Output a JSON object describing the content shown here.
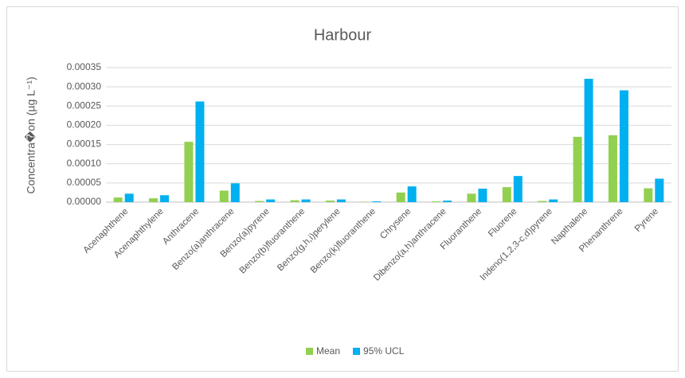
{
  "chart_data": {
    "type": "bar",
    "title": "Harbour",
    "y_label": "Concentra�on (µg L⁻¹)",
    "categories": [
      "Acenaphthene",
      "Acenaphthylene",
      "Anthracene",
      "Benzo(a)anthracene",
      "Benzo(a)pyrene",
      "Benzo(b)fluoranthene",
      "Benzo(g,h,i)perylene",
      "Benzo(k)fluoranthene",
      "Chrysene",
      "Dibenzo(a,h)anthracene",
      "Fluoranthene",
      "Fluorene",
      "Indeno(1,2,3-c,d)pyrene",
      "Napthalene",
      "Phenanthrene",
      "Pyrene"
    ],
    "series": [
      {
        "name": "Mean",
        "color": "#92d050",
        "values": [
          1.2e-05,
          1e-05,
          0.000157,
          3e-05,
          3e-06,
          5e-06,
          4e-06,
          1e-06,
          2.5e-05,
          2e-06,
          2.2e-05,
          3.9e-05,
          3e-06,
          0.00017,
          0.000174,
          3.6e-05
        ]
      },
      {
        "name": "95% UCL",
        "color": "#00b0f0",
        "values": [
          2.2e-05,
          1.8e-05,
          0.000262,
          4.9e-05,
          7e-06,
          7e-06,
          7e-06,
          2e-06,
          4.1e-05,
          4e-06,
          3.5e-05,
          6.8e-05,
          7e-06,
          0.000321,
          0.000291,
          6.1e-05
        ]
      }
    ],
    "ylim": [
      0,
      0.00035
    ],
    "yticks": [
      {
        "value": 0,
        "label": "0.00000"
      },
      {
        "value": 5e-05,
        "label": "0.00005"
      },
      {
        "value": 0.0001,
        "label": "0.00010"
      },
      {
        "value": 0.00015,
        "label": "0.00015"
      },
      {
        "value": 0.0002,
        "label": "0.00020"
      },
      {
        "value": 0.00025,
        "label": "0.00025"
      },
      {
        "value": 0.0003,
        "label": "0.00030"
      },
      {
        "value": 0.00035,
        "label": "0.00035"
      }
    ],
    "grid": true,
    "legend": "bottom"
  }
}
